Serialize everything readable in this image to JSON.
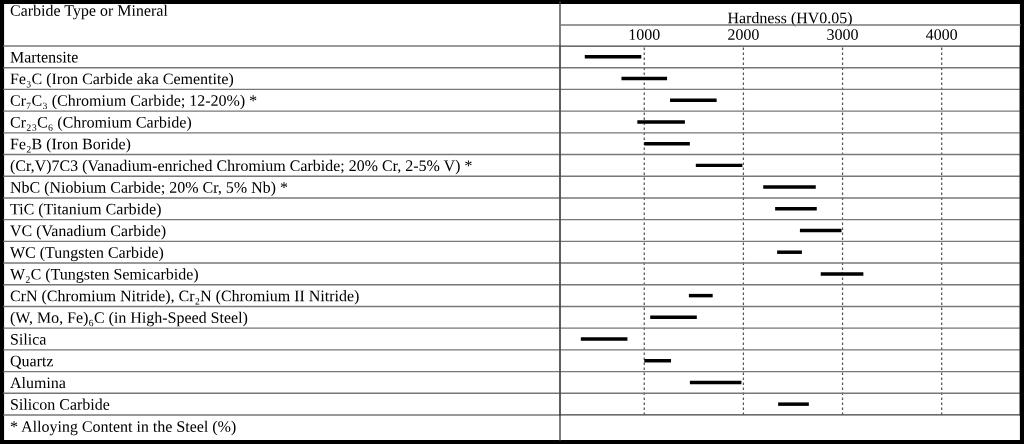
{
  "chart_data": {
    "type": "bar",
    "orientation": "horizontal",
    "xlabel": "Hardness (HV0.05)",
    "ylabel": "Carbide Type or Mineral",
    "categories": [
      "Martensite",
      "Fe₃C (Iron Carbide aka Cementite)",
      "Cr₇C₃ (Chromium Carbide; 12-20%) *",
      "Cr₂₃C₆ (Chromium Carbide)",
      "Fe₂B (Iron Boride)",
      "(Cr,V)7C3 (Vanadium-enriched Chromium Carbide; 20% Cr, 2-5% V) *",
      "NbC (Niobium Carbide; 20% Cr, 5% Nb) *",
      "TiC (Titanium Carbide)",
      "VC (Vanadium Carbide)",
      "WC (Tungsten Carbide)",
      "W₂C (Tungsten Semicarbide)",
      "CrN (Chromium Nitride), Cr₂N (Chromium II Nitride)",
      "(W, Mo, Fe)₆C (in High-Speed Steel)",
      "Silica",
      "Quartz",
      "Alumina",
      "Silicon Carbide"
    ],
    "base": [
      400,
      770,
      1260,
      930,
      1000,
      1520,
      2200,
      2320,
      2570,
      2340,
      2780,
      1450,
      1060,
      360,
      1000,
      1460,
      2350
    ],
    "values": [
      570,
      460,
      470,
      480,
      460,
      470,
      530,
      420,
      420,
      250,
      430,
      240,
      470,
      470,
      270,
      520,
      310
    ],
    "color": "#000000",
    "xlim": [
      150,
      4790
    ],
    "xticks": [
      1000,
      2000,
      3000,
      4000
    ],
    "grid": "x",
    "annotations": [
      "* Alloying Content in the Steel (%)"
    ]
  }
}
